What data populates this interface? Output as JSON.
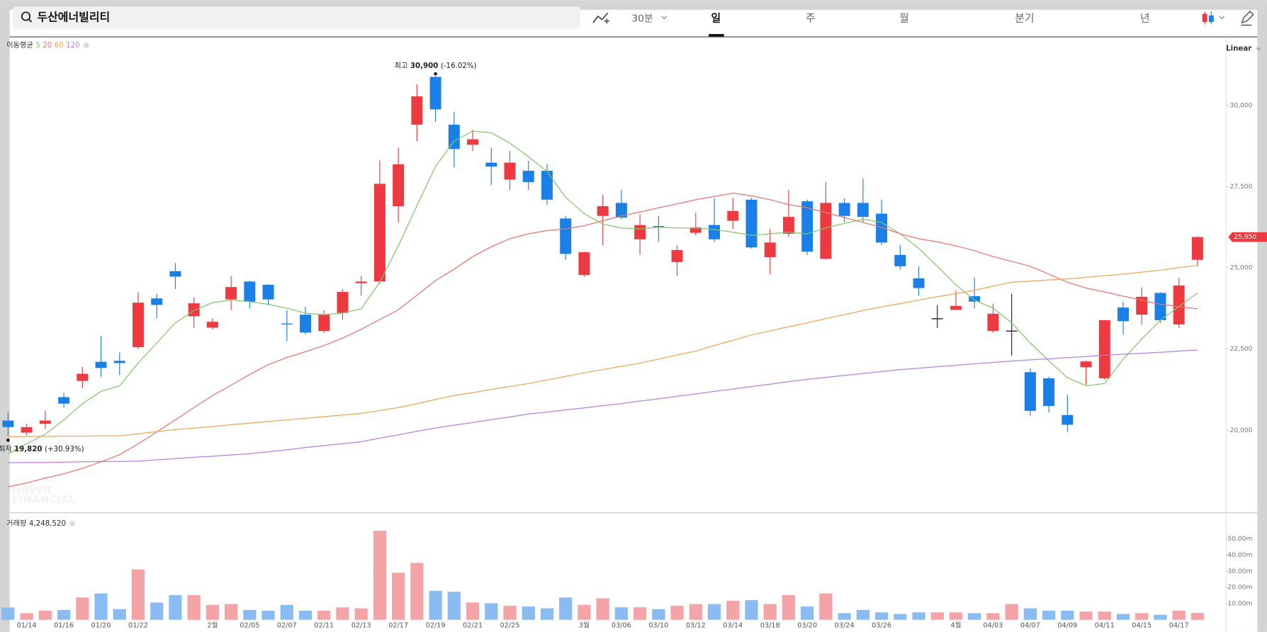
{
  "header": {
    "search": "두산에너빌리티",
    "interval": "30분",
    "tabs": [
      "일",
      "주",
      "월",
      "분기",
      "년"
    ],
    "scale": "Linear",
    "watermark": [
      "NAVER",
      "FINANCIAL"
    ]
  },
  "chart_data": {
    "type": "candlestick",
    "categories": [
      null,
      "01/14",
      null,
      "01/16",
      null,
      "01/20",
      null,
      "01/22",
      null,
      null,
      null,
      "2월",
      null,
      "02/05",
      null,
      "02/07",
      null,
      "02/11",
      null,
      "02/13",
      null,
      "02/17",
      null,
      "02/19",
      null,
      "02/21",
      null,
      "02/25",
      null,
      null,
      null,
      "3월",
      null,
      "03/06",
      null,
      "03/10",
      null,
      "03/12",
      null,
      "03/14",
      null,
      "03/18",
      null,
      "03/20",
      null,
      "03/24",
      null,
      "03/26",
      null,
      null,
      null,
      "4월",
      null,
      "04/03",
      null,
      "04/07",
      null,
      "04/09",
      null,
      "04/11",
      null,
      "04/15",
      null,
      "04/17",
      null
    ],
    "open": [
      20300,
      19930,
      20200,
      21020,
      21520,
      22110,
      22140,
      22560,
      24060,
      24900,
      23510,
      23160,
      24030,
      24580,
      24480,
      23290,
      23560,
      23060,
      23610,
      24530,
      24580,
      26900,
      29410,
      30880,
      29410,
      28790,
      28240,
      27720,
      27990,
      27990,
      26520,
      24780,
      26600,
      27000,
      25880,
      26290,
      25180,
      26080,
      26320,
      26450,
      27100,
      25330,
      26050,
      27050,
      25280,
      27000,
      27000,
      26670,
      25400,
      24680,
      23450,
      23710,
      24130,
      23060,
      23070,
      21790,
      21600,
      20470,
      21940,
      21600,
      23780,
      23560,
      24230,
      23260,
      25250
    ],
    "high": [
      20550,
      20200,
      20600,
      21150,
      21950,
      22900,
      22400,
      24250,
      24200,
      25150,
      24100,
      23450,
      24750,
      24600,
      24500,
      23700,
      23800,
      23700,
      24350,
      24750,
      28300,
      28700,
      30650,
      30900,
      29800,
      29250,
      28700,
      28600,
      28300,
      28200,
      26600,
      25500,
      27250,
      27400,
      26650,
      26600,
      25700,
      26700,
      27150,
      27150,
      27150,
      26200,
      27400,
      27100,
      27650,
      27150,
      27750,
      27100,
      25700,
      25050,
      23850,
      24300,
      24700,
      23900,
      24200,
      21900,
      21650,
      21100,
      22150,
      23400,
      23950,
      24400,
      24250,
      24700,
      25970
    ],
    "low": [
      19820,
      19850,
      20050,
      20700,
      21300,
      21650,
      21700,
      22500,
      23450,
      24350,
      23150,
      23100,
      23700,
      23750,
      23850,
      22750,
      22950,
      23000,
      23400,
      24150,
      24500,
      26400,
      28900,
      29500,
      28100,
      28600,
      27550,
      27400,
      27400,
      26950,
      25250,
      24730,
      25700,
      26500,
      25400,
      25800,
      24750,
      26000,
      25800,
      26200,
      25600,
      24800,
      25950,
      25400,
      25250,
      26400,
      26400,
      25700,
      24950,
      24150,
      23150,
      23700,
      23750,
      23000,
      22300,
      20450,
      20550,
      19950,
      21400,
      21550,
      22950,
      23250,
      23300,
      23150,
      25050
    ],
    "close": [
      20100,
      20100,
      20300,
      20820,
      21740,
      21920,
      22070,
      23930,
      23860,
      24730,
      23910,
      23340,
      24410,
      23960,
      24030,
      23260,
      23010,
      23560,
      24260,
      24580,
      27590,
      28190,
      30280,
      29880,
      28660,
      28960,
      28120,
      28240,
      27640,
      27100,
      25430,
      25480,
      26900,
      26550,
      26320,
      26260,
      25550,
      26250,
      25880,
      26750,
      25630,
      25780,
      26570,
      25500,
      27000,
      26600,
      26570,
      25780,
      25050,
      24380,
      23450,
      23830,
      23960,
      23590,
      23070,
      20600,
      20750,
      20170,
      22120,
      23390,
      23360,
      24110,
      23390,
      24460,
      25950
    ],
    "up_color": "#ec3a40",
    "down_color": "#1a7fe6",
    "flat_color": "#222222",
    "ylim": [
      17500,
      32100
    ],
    "yticks": [
      {
        "value": 20000,
        "label": "20,000"
      },
      {
        "value": 22500,
        "label": "22,500"
      },
      {
        "value": 25000,
        "label": "25,000"
      },
      {
        "value": 27500,
        "label": "27,500"
      },
      {
        "value": 30000,
        "label": "30,000"
      }
    ],
    "current_price_label": "25,950",
    "high_label": {
      "label": "최고",
      "value": "30,900",
      "change": "(-16.02%)"
    },
    "low_label": {
      "label": "최저",
      "value": "19,820",
      "change": "(+30.93%)"
    },
    "moving_averages": {
      "label": "이동평균",
      "series": [
        {
          "name": "5",
          "color": "#80c86c",
          "values": [
            19280,
            19580,
            19880,
            20320,
            20820,
            21200,
            21370,
            22070,
            22690,
            23310,
            23690,
            23930,
            24010,
            23960,
            23880,
            23760,
            23610,
            23560,
            23610,
            23740,
            24560,
            25680,
            26920,
            28120,
            28910,
            29210,
            29160,
            28840,
            28420,
            27970,
            27170,
            26670,
            26350,
            26230,
            26200,
            26250,
            26230,
            26230,
            26180,
            26100,
            26000,
            26050,
            26100,
            26050,
            26230,
            26370,
            26500,
            26400,
            26050,
            25600,
            25050,
            24480,
            24010,
            23760,
            23310,
            22690,
            22140,
            21620,
            21370,
            21440,
            22190,
            22810,
            23390,
            23810,
            24230
          ]
        },
        {
          "name": "20",
          "color": "#e8766f",
          "values": [
            18260,
            18380,
            18530,
            18660,
            18830,
            19030,
            19250,
            19580,
            19950,
            20320,
            20700,
            21070,
            21390,
            21720,
            22020,
            22240,
            22420,
            22610,
            22840,
            23110,
            23410,
            23710,
            24160,
            24610,
            24960,
            25350,
            25650,
            25900,
            26050,
            26150,
            26200,
            26300,
            26450,
            26600,
            26720,
            26850,
            26970,
            27100,
            27200,
            27300,
            27220,
            27100,
            26950,
            26850,
            26700,
            26550,
            26400,
            26250,
            26050,
            25900,
            25800,
            25680,
            25530,
            25350,
            25200,
            25050,
            24810,
            24560,
            24380,
            24260,
            24130,
            24010,
            23880,
            23810,
            23740
          ]
        },
        {
          "name": "60",
          "color": "#f0a656",
          "values": [
            19800,
            19810,
            19810,
            19820,
            19820,
            19830,
            19830,
            19890,
            19960,
            20020,
            20070,
            20120,
            20170,
            20220,
            20270,
            20320,
            20370,
            20420,
            20470,
            20520,
            20610,
            20700,
            20820,
            20950,
            21070,
            21160,
            21260,
            21350,
            21440,
            21550,
            21660,
            21770,
            21870,
            21970,
            22070,
            22190,
            22320,
            22440,
            22610,
            22770,
            22940,
            23060,
            23190,
            23310,
            23440,
            23560,
            23690,
            23800,
            23900,
            24010,
            24110,
            24210,
            24310,
            24440,
            24560,
            24590,
            24630,
            24660,
            24710,
            24760,
            24810,
            24870,
            24930,
            25010,
            25080
          ]
        },
        {
          "name": "120",
          "color": "#b680e0",
          "values": [
            19000,
            19010,
            19010,
            19020,
            19030,
            19040,
            19040,
            19050,
            19090,
            19130,
            19170,
            19200,
            19240,
            19280,
            19340,
            19400,
            19470,
            19530,
            19590,
            19650,
            19760,
            19860,
            19970,
            20070,
            20160,
            20240,
            20330,
            20410,
            20500,
            20560,
            20630,
            20690,
            20760,
            20820,
            20900,
            20970,
            21050,
            21120,
            21200,
            21270,
            21350,
            21420,
            21500,
            21570,
            21630,
            21690,
            21750,
            21810,
            21870,
            21910,
            21960,
            22000,
            22050,
            22090,
            22130,
            22170,
            22200,
            22240,
            22270,
            22310,
            22340,
            22370,
            22400,
            22440,
            22470
          ]
        }
      ]
    },
    "volume": {
      "label": "거래량",
      "current_label": "4,248,520",
      "up_color": "#f4a3a6",
      "down_color": "#8abbf2",
      "values": [
        7600000,
        4100000,
        5600000,
        6100000,
        13800000,
        16300000,
        6600000,
        31100000,
        10700000,
        15300000,
        15300000,
        9200000,
        9700000,
        6100000,
        5600000,
        9200000,
        5600000,
        5600000,
        7700000,
        7100000,
        55100000,
        29100000,
        35200000,
        17900000,
        17300000,
        10700000,
        10200000,
        8700000,
        8200000,
        7100000,
        13800000,
        9200000,
        13300000,
        7700000,
        7700000,
        6600000,
        8700000,
        9700000,
        9700000,
        11700000,
        12200000,
        9700000,
        15300000,
        8200000,
        16300000,
        4100000,
        6100000,
        4600000,
        3600000,
        4600000,
        4600000,
        4600000,
        4100000,
        4100000,
        9700000,
        7100000,
        5600000,
        5600000,
        5100000,
        5100000,
        3600000,
        4100000,
        3100000,
        5600000,
        4248520
      ],
      "ylim": [
        0,
        61000000
      ],
      "yticks": [
        {
          "value": 10000000,
          "label": "10.00m"
        },
        {
          "value": 20000000,
          "label": "20.00m"
        },
        {
          "value": 30000000,
          "label": "30.00m"
        },
        {
          "value": 40000000,
          "label": "40.00m"
        },
        {
          "value": 50000000,
          "label": "50.00m"
        }
      ]
    }
  }
}
